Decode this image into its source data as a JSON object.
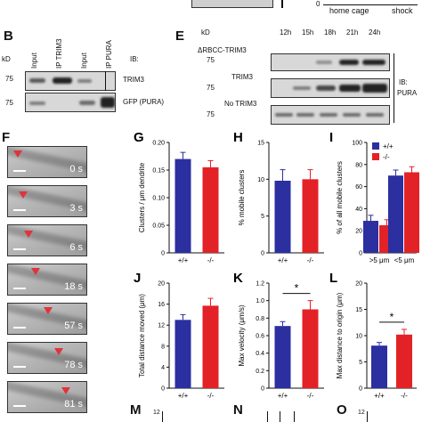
{
  "top": {
    "home_cage": "home cage",
    "shock": "shock",
    "zero": "0"
  },
  "panel_b": {
    "label": "B",
    "kd": "kD",
    "lanes": [
      "Input",
      "IP TRIM3",
      "Input",
      "IP PURA"
    ],
    "ib": "IB:",
    "rows": [
      {
        "marker": "75",
        "name": "TRIM3"
      },
      {
        "marker": "75",
        "name": "GFP (PURA)"
      }
    ]
  },
  "panel_e": {
    "label": "E",
    "kd": "kD",
    "times": [
      "12h",
      "15h",
      "18h",
      "21h",
      "24h"
    ],
    "ib": "IB:",
    "ib_target": "PURA",
    "rows": [
      {
        "marker": "75",
        "name": "ΔRBCC-TRIM3"
      },
      {
        "marker": "75",
        "name": "TRIM3"
      },
      {
        "marker": "75",
        "name": "No TRIM3"
      }
    ]
  },
  "panel_f": {
    "label": "F",
    "frames": [
      "0 s",
      "3 s",
      "6 s",
      "18 s",
      "57 s",
      "78 s",
      "81 s"
    ]
  },
  "bottom_labels": {
    "m": "M",
    "n": "N",
    "o": "O",
    "m_tick": "12"
  },
  "colors": {
    "wt": "#2b2fa0",
    "ko": "#e32227"
  },
  "chart_data": [
    {
      "panel": "G",
      "type": "bar",
      "categories": [
        "+/+",
        "-/-"
      ],
      "values": [
        0.17,
        0.155
      ],
      "errors": [
        0.012,
        0.012
      ],
      "ylabel": "Clusters / μm dendrite",
      "ylim": [
        0,
        0.2
      ],
      "yticks": [
        "0",
        "0.05",
        "0.10",
        "0.15",
        "0.20"
      ],
      "xticks": [
        "+/+",
        "-/-"
      ]
    },
    {
      "panel": "H",
      "type": "bar",
      "categories": [
        "+/+",
        "-/-"
      ],
      "values": [
        9.8,
        10.0
      ],
      "errors": [
        1.5,
        1.3
      ],
      "ylabel": "% mobile clusters",
      "ylim": [
        0,
        15
      ],
      "yticks": [
        "0",
        "5",
        "10",
        "15"
      ],
      "xticks": [
        "+/+",
        "-/-"
      ]
    },
    {
      "panel": "I",
      "type": "bar",
      "categories": [
        ">5 μm",
        "<5 μm"
      ],
      "series": [
        {
          "name": "+/+",
          "values": [
            29,
            70
          ],
          "errors": [
            5,
            5
          ]
        },
        {
          "name": "-/-",
          "values": [
            25,
            73
          ],
          "errors": [
            5,
            5
          ]
        }
      ],
      "ylabel": "% of all mobile clusters",
      "ylim": [
        0,
        100
      ],
      "yticks": [
        "0",
        "20",
        "40",
        "60",
        "80",
        "100"
      ],
      "xticks": [
        ">5 μm",
        "<5 μm"
      ],
      "legend": [
        "+/+",
        "-/-"
      ]
    },
    {
      "panel": "J",
      "type": "bar",
      "categories": [
        "+/+",
        "-/-"
      ],
      "values": [
        13.0,
        15.7
      ],
      "errors": [
        1.0,
        1.4
      ],
      "ylabel": "Total distance moved (μm)",
      "ylim": [
        0,
        20
      ],
      "yticks": [
        "0",
        "4",
        "8",
        "12",
        "16",
        "20"
      ],
      "xticks": [
        "+/+",
        "-/-"
      ]
    },
    {
      "panel": "K",
      "type": "bar",
      "categories": [
        "+/+",
        "-/-"
      ],
      "values": [
        0.71,
        0.9
      ],
      "errors": [
        0.05,
        0.1
      ],
      "ylabel": "Max velocity (μm/s)",
      "ylim": [
        0,
        1.2
      ],
      "yticks": [
        "0",
        "0.2",
        "0.4",
        "0.6",
        "0.8",
        "1.0",
        "1.2"
      ],
      "xticks": [
        "+/+",
        "-/-"
      ],
      "sig": "*"
    },
    {
      "panel": "L",
      "type": "bar",
      "categories": [
        "+/+",
        "-/-"
      ],
      "values": [
        8.1,
        10.2
      ],
      "errors": [
        0.6,
        1.0
      ],
      "ylabel": "Max distance to origin (μm)",
      "ylim": [
        0,
        20
      ],
      "yticks": [
        "0",
        "5",
        "10",
        "15",
        "20"
      ],
      "xticks": [
        "+/+",
        "-/-"
      ],
      "sig": "*"
    }
  ]
}
